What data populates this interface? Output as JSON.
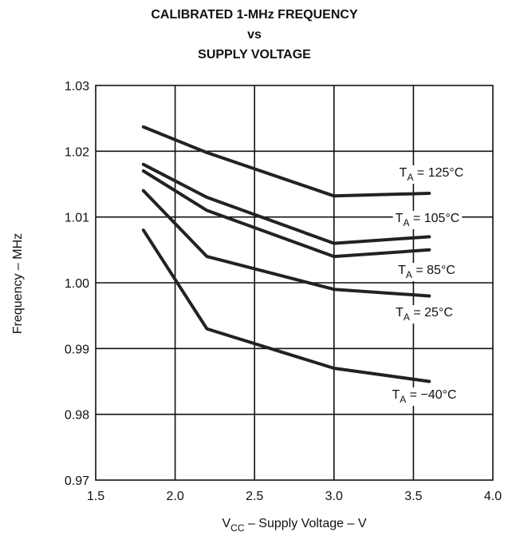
{
  "chart_data": {
    "type": "line",
    "title": [
      "CALIBRATED 1-MHz FREQUENCY",
      "vs",
      "SUPPLY VOLTAGE"
    ],
    "xlabel": {
      "main": "V",
      "sub": "CC",
      "rest": " – Supply Voltage – V"
    },
    "ylabel": "Frequency – MHz",
    "xlim": [
      1.5,
      4.0
    ],
    "ylim": [
      0.97,
      1.03
    ],
    "xticks": [
      "1.5",
      "2.0",
      "2.5",
      "3.0",
      "3.5",
      "4.0"
    ],
    "yticks": [
      "0.97",
      "0.98",
      "0.99",
      "1.00",
      "1.01",
      "1.02",
      "1.03"
    ],
    "grid": true,
    "series": [
      {
        "name": {
          "main": "T",
          "sub": "A",
          "rest": " = 125°C"
        },
        "x": [
          1.8,
          2.2,
          3.0,
          3.6
        ],
        "y": [
          1.0237,
          1.0198,
          1.0132,
          1.0136
        ]
      },
      {
        "name": {
          "main": "T",
          "sub": "A",
          "rest": " = 105°C"
        },
        "x": [
          1.8,
          2.2,
          3.0,
          3.6
        ],
        "y": [
          1.018,
          1.013,
          1.006,
          1.007
        ]
      },
      {
        "name": {
          "main": "T",
          "sub": "A",
          "rest": " = 85°C"
        },
        "x": [
          1.8,
          2.2,
          3.0,
          3.6
        ],
        "y": [
          1.017,
          1.011,
          1.004,
          1.005
        ]
      },
      {
        "name": {
          "main": "T",
          "sub": "A",
          "rest": " = 25°C"
        },
        "x": [
          1.8,
          2.2,
          3.0,
          3.6
        ],
        "y": [
          1.014,
          1.004,
          0.999,
          0.998
        ]
      },
      {
        "name": {
          "main": "T",
          "sub": "A",
          "rest": " = −40°C"
        },
        "x": [
          1.8,
          2.2,
          3.0,
          3.6
        ],
        "y": [
          1.008,
          0.993,
          0.987,
          0.985
        ]
      }
    ]
  }
}
